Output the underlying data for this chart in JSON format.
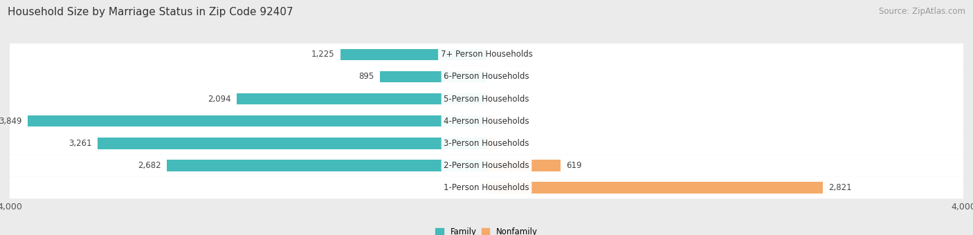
{
  "title": "Household Size by Marriage Status in Zip Code 92407",
  "source": "Source: ZipAtlas.com",
  "categories": [
    "7+ Person Households",
    "6-Person Households",
    "5-Person Households",
    "4-Person Households",
    "3-Person Households",
    "2-Person Households",
    "1-Person Households"
  ],
  "family_values": [
    1225,
    895,
    2094,
    3849,
    3261,
    2682,
    0
  ],
  "nonfamily_values": [
    0,
    0,
    40,
    54,
    85,
    619,
    2821
  ],
  "family_color": "#45BABA",
  "nonfamily_color": "#F5AA6A",
  "xlim": 4000,
  "bar_height": 0.52,
  "background_color": "#ebebeb",
  "row_bg_color_light": "#f5f5f5",
  "row_bg_color_dark": "#e8e8e8",
  "title_fontsize": 11,
  "source_fontsize": 8.5,
  "label_fontsize": 8.5,
  "axis_label_fontsize": 9
}
